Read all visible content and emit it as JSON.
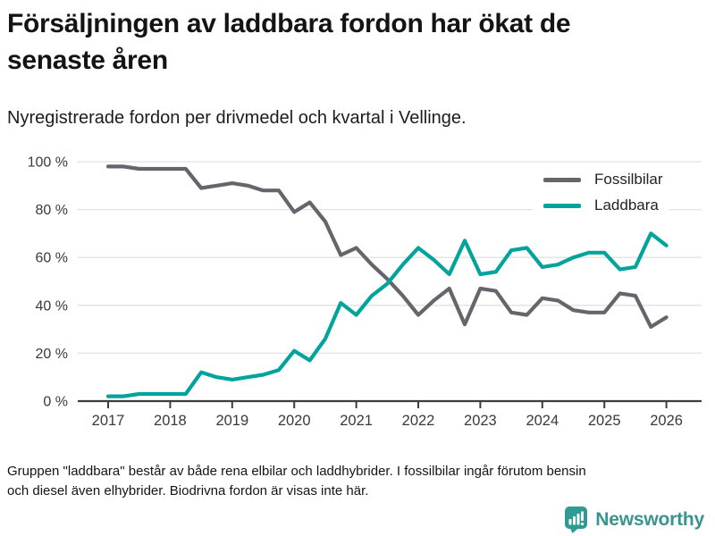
{
  "header": {
    "title_line1": "Försäljningen av laddbara fordon har ökat de",
    "title_line2": "senaste åren",
    "subtitle": "Nyregistrerade fordon per drivmedel och kvartal i Vellinge."
  },
  "chart_data": {
    "type": "line",
    "title": "Nyregistrerade fordon per drivmedel och kvartal i Vellinge",
    "frequency": "quarterly",
    "start_period": "2017 Q1",
    "end_period": "2026 Q1",
    "x_tick_labels": [
      "2017",
      "2018",
      "2019",
      "2020",
      "2021",
      "2022",
      "2023",
      "2024",
      "2025",
      "2026"
    ],
    "y_ticks": [
      0,
      20,
      40,
      60,
      80,
      100
    ],
    "y_tick_suffix": " %",
    "ylim": [
      0,
      100
    ],
    "grid": "horizontal",
    "legend_position": "top-right",
    "series": [
      {
        "name": "Fossilbilar",
        "color": "#65656c",
        "values": [
          98,
          98,
          97,
          97,
          97,
          97,
          89,
          90,
          91,
          90,
          88,
          88,
          79,
          83,
          75,
          61,
          64,
          57,
          51,
          44,
          36,
          42,
          47,
          32,
          47,
          46,
          37,
          36,
          43,
          42,
          38,
          37,
          37,
          45,
          44,
          31,
          35
        ]
      },
      {
        "name": "Laddbara",
        "color": "#00a49c",
        "values": [
          2,
          2,
          3,
          3,
          3,
          3,
          12,
          10,
          9,
          10,
          11,
          13,
          21,
          17,
          26,
          41,
          36,
          44,
          49,
          57,
          64,
          59,
          53,
          67,
          53,
          54,
          63,
          64,
          56,
          57,
          60,
          62,
          62,
          55,
          56,
          70,
          65
        ]
      }
    ],
    "axis_color": "#3d3d3d",
    "gridline_color": "#e2e2e2",
    "tick_label_color": "#3a3a3a"
  },
  "footer": {
    "note_line1": "Gruppen \"laddbara\" består av både rena elbilar och laddhybrider. I fossilbilar ingår förutom bensin",
    "note_line2": "och diesel även elhybrider. Biodrivna fordon är visas inte här.",
    "brand": "Newsworthy",
    "brand_icon_color": "#2f9c94",
    "brand_text_color": "#3a938d"
  }
}
